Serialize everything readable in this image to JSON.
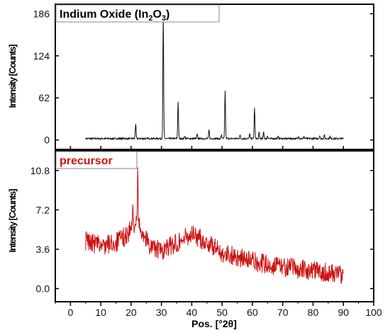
{
  "chart_data": [
    {
      "type": "line",
      "title_main": "Indium Oxide (In",
      "title_sub1": "2",
      "title_mid": "O",
      "title_sub2": "3",
      "title_close": ")",
      "ylabel": "Intensity [Counts]",
      "xlabel": "",
      "xlim": [
        -5,
        100
      ],
      "ylim": [
        -14,
        200
      ],
      "yticks": [
        0,
        62,
        124,
        186
      ],
      "color": "#111111",
      "baseline": 2,
      "noise": 1.2,
      "peaks": [
        {
          "x": 21.5,
          "y": 24
        },
        {
          "x": 30.6,
          "y": 186
        },
        {
          "x": 35.5,
          "y": 57
        },
        {
          "x": 37.7,
          "y": 6
        },
        {
          "x": 41.8,
          "y": 8
        },
        {
          "x": 45.7,
          "y": 15
        },
        {
          "x": 49.8,
          "y": 8
        },
        {
          "x": 51.0,
          "y": 72
        },
        {
          "x": 55.9,
          "y": 7
        },
        {
          "x": 59.1,
          "y": 9
        },
        {
          "x": 60.7,
          "y": 48
        },
        {
          "x": 62.2,
          "y": 11
        },
        {
          "x": 63.7,
          "y": 12
        },
        {
          "x": 65.0,
          "y": 6
        },
        {
          "x": 68.5,
          "y": 5
        },
        {
          "x": 75.3,
          "y": 6
        },
        {
          "x": 77.0,
          "y": 5
        },
        {
          "x": 82.2,
          "y": 6
        },
        {
          "x": 83.7,
          "y": 7
        },
        {
          "x": 85.6,
          "y": 5
        }
      ],
      "x_range": [
        5,
        90
      ]
    },
    {
      "type": "line",
      "title_main": "precursor",
      "ylabel": "Intensity [Counts]",
      "xlabel": "Pos. [°2θ]",
      "xlim": [
        -5,
        100
      ],
      "ylim": [
        -1.2,
        12.6
      ],
      "yticks": [
        0.0,
        3.6,
        7.2,
        10.8
      ],
      "ytick_labels": [
        "0.0",
        "3.6",
        "7.2",
        "10.8"
      ],
      "xticks": [
        0,
        10,
        20,
        30,
        40,
        50,
        60,
        70,
        80,
        90,
        100
      ],
      "color": "#cc1111",
      "trend": [
        [
          5,
          4.4
        ],
        [
          10,
          3.9
        ],
        [
          15,
          4.2
        ],
        [
          19,
          5.0
        ],
        [
          21,
          6.0
        ],
        [
          23,
          5.6
        ],
        [
          26,
          4.0
        ],
        [
          30,
          3.4
        ],
        [
          35,
          4.2
        ],
        [
          40,
          5.0
        ],
        [
          45,
          4.2
        ],
        [
          50,
          3.3
        ],
        [
          55,
          2.9
        ],
        [
          60,
          2.5
        ],
        [
          65,
          2.2
        ],
        [
          70,
          2.0
        ],
        [
          75,
          1.8
        ],
        [
          80,
          1.6
        ],
        [
          85,
          1.5
        ],
        [
          90,
          1.3
        ]
      ],
      "spikes": [
        {
          "x": 22.2,
          "y": 11.5
        },
        {
          "x": 20.6,
          "y": 7.3
        }
      ],
      "noise": 0.9,
      "x_range": [
        5,
        90
      ]
    }
  ]
}
